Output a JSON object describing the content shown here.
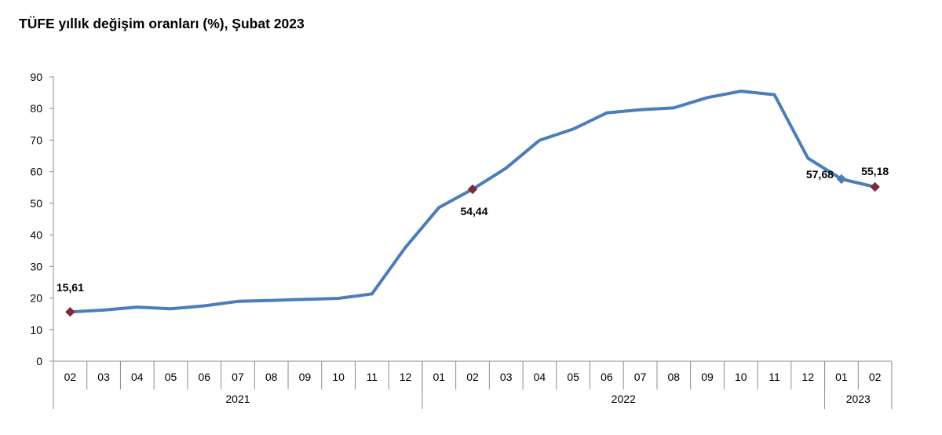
{
  "title": "TÜFE yıllık değişim oranları (%), Şubat 2023",
  "chart_data": {
    "type": "line",
    "title": "TÜFE yıllık değişim oranları (%), Şubat 2023",
    "ylim": [
      0,
      90
    ],
    "yticks": [
      0,
      10,
      20,
      30,
      40,
      50,
      60,
      70,
      80,
      90
    ],
    "grid": false,
    "categories": [
      "02",
      "03",
      "04",
      "05",
      "06",
      "07",
      "08",
      "09",
      "10",
      "11",
      "12",
      "01",
      "02",
      "03",
      "04",
      "05",
      "06",
      "07",
      "08",
      "09",
      "10",
      "11",
      "12",
      "01",
      "02"
    ],
    "year_groups": [
      {
        "label": "2021",
        "count": 11
      },
      {
        "label": "2022",
        "count": 12
      },
      {
        "label": "2023",
        "count": 2
      }
    ],
    "series": [
      {
        "color": "#4A7EBB",
        "values": [
          15.61,
          16.19,
          17.14,
          16.59,
          17.53,
          18.95,
          19.25,
          19.58,
          19.89,
          21.31,
          36.08,
          48.69,
          54.44,
          61.14,
          69.97,
          73.5,
          78.62,
          79.6,
          80.21,
          83.45,
          85.51,
          84.39,
          64.27,
          57.68,
          55.18
        ]
      }
    ],
    "data_labels": [
      {
        "index": 0,
        "text": "15,61",
        "marker_color": "#7B2C3E"
      },
      {
        "index": 12,
        "text": "54,44",
        "marker_color": "#7B2C3E"
      },
      {
        "index": 23,
        "text": "57,68",
        "marker_color": "#4A7EBB"
      },
      {
        "index": 24,
        "text": "55,18",
        "marker_color": "#7B2C3E"
      }
    ]
  }
}
